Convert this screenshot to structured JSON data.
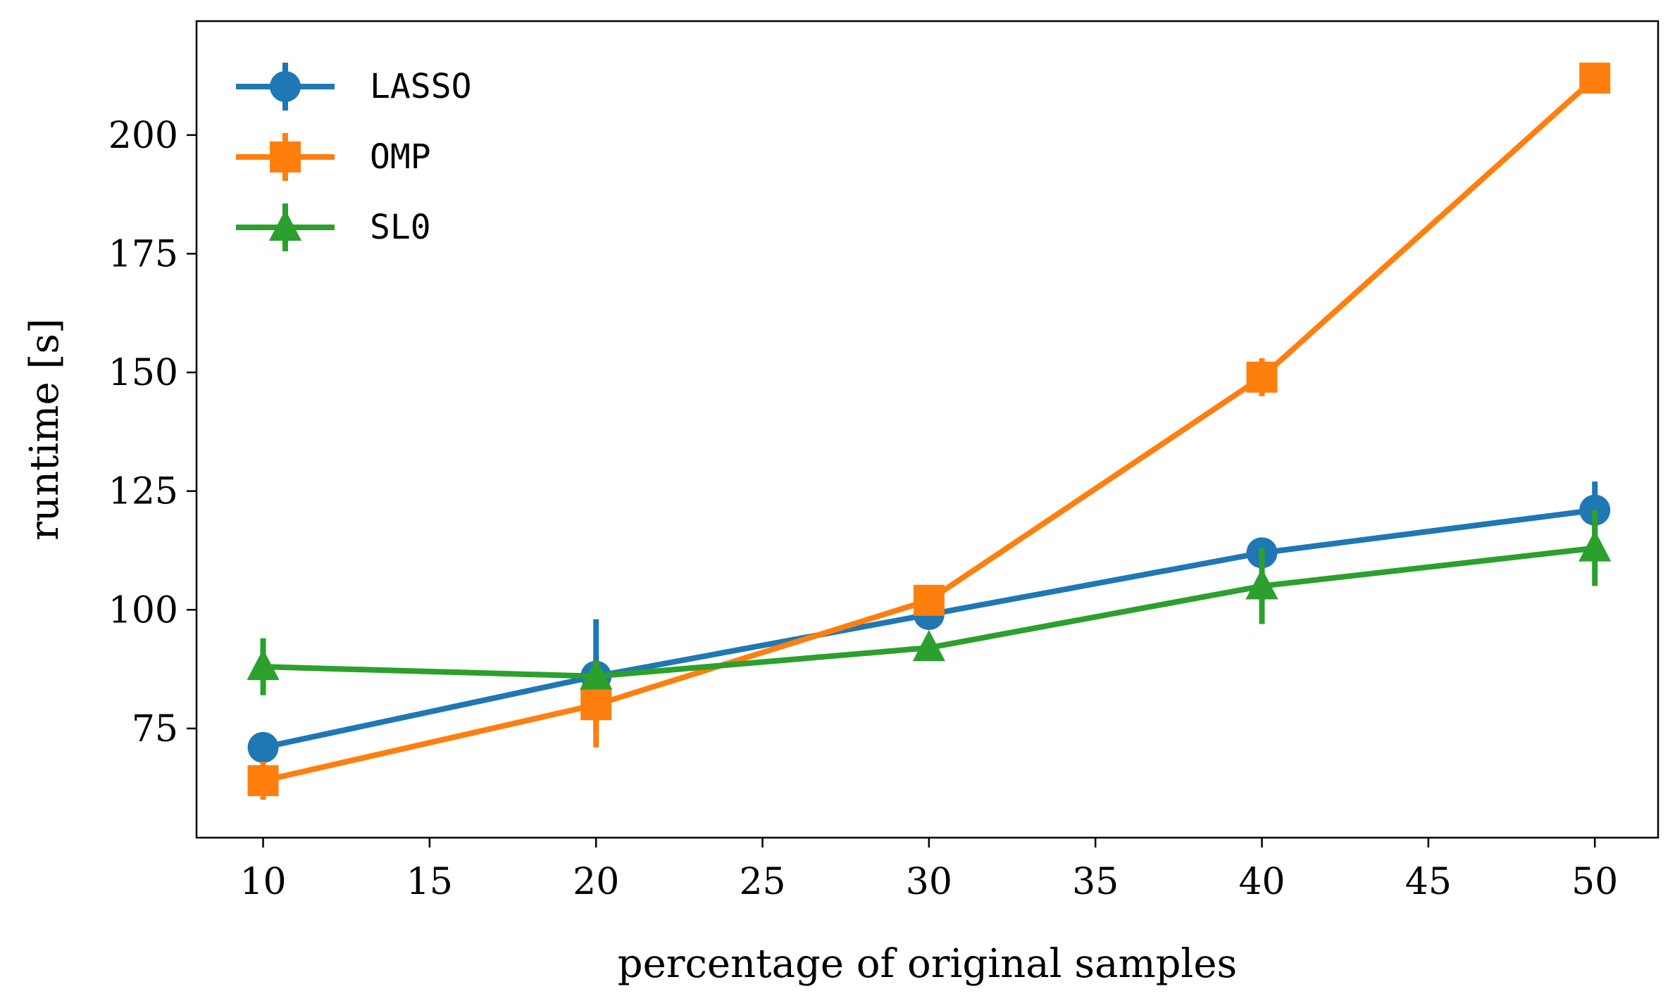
{
  "chart_data": {
    "type": "line",
    "title": "",
    "xlabel": "percentage of original samples",
    "ylabel": "runtime [s]",
    "xlim": [
      8,
      51.9
    ],
    "ylim": [
      52,
      224
    ],
    "xticks": [
      10,
      15,
      20,
      25,
      30,
      35,
      40,
      45,
      50
    ],
    "yticks": [
      75,
      100,
      125,
      150,
      175,
      200
    ],
    "grid": false,
    "legend_position": "top-left",
    "series": [
      {
        "name": "LASSO",
        "color": "#1f77b4",
        "marker": "circle",
        "x": [
          10,
          20,
          30,
          40,
          50
        ],
        "y": [
          71,
          86,
          99,
          112,
          121
        ],
        "yerr": [
          3,
          12,
          2,
          3,
          6
        ]
      },
      {
        "name": "OMP",
        "color": "#ff7f0e",
        "marker": "square",
        "x": [
          10,
          20,
          30,
          40,
          50
        ],
        "y": [
          64,
          80,
          102,
          149,
          212
        ],
        "yerr": [
          4,
          9,
          2,
          4,
          3
        ]
      },
      {
        "name": "SL0",
        "color": "#2ca02c",
        "marker": "triangle",
        "x": [
          10,
          20,
          30,
          40,
          50
        ],
        "y": [
          88,
          86,
          92,
          105,
          113
        ],
        "yerr": [
          6,
          2,
          2,
          8,
          8
        ]
      }
    ]
  }
}
